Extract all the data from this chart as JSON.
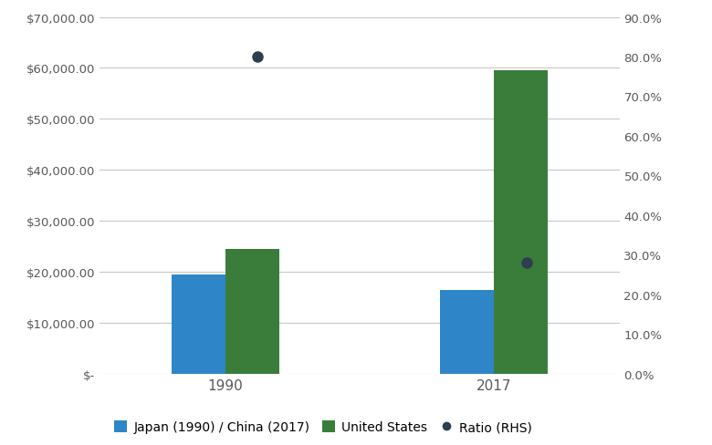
{
  "groups": [
    "1990",
    "2017"
  ],
  "bar1_values": [
    19500,
    16500
  ],
  "bar2_values": [
    24500,
    59500
  ],
  "ratio_values": [
    0.8,
    0.28
  ],
  "bar1_color": "#2E86C8",
  "bar2_color": "#3A7D3A",
  "ratio_color": "#2C3E50",
  "ylim_left": [
    0,
    70000
  ],
  "ylim_right": [
    0,
    0.9
  ],
  "yticks_left": [
    0,
    10000,
    20000,
    30000,
    40000,
    50000,
    60000,
    70000
  ],
  "yticks_right": [
    0.0,
    0.1,
    0.2,
    0.3,
    0.4,
    0.5,
    0.6,
    0.7,
    0.8,
    0.9
  ],
  "legend_labels": [
    "Japan (1990) / China (2017)",
    "United States",
    "Ratio (RHS)"
  ],
  "bar_width": 0.3,
  "group_positions": [
    1.0,
    2.5
  ],
  "background_color": "#FFFFFF",
  "grid_color": "#C8C8C8",
  "tick_color": "#595959",
  "figsize": [
    7.8,
    4.89
  ],
  "dpi": 100
}
